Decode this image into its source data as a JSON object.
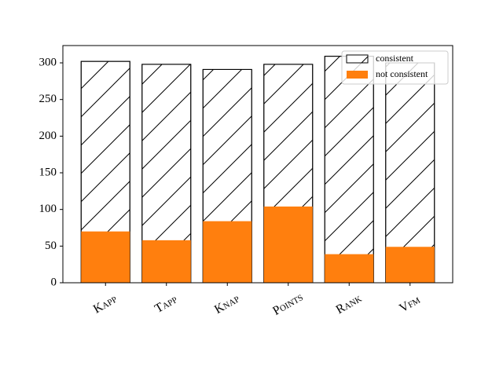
{
  "chart_data": {
    "type": "bar",
    "overlay": true,
    "categories": [
      "Kapp",
      "Tapp",
      "Knap",
      "Points",
      "Rank",
      "Vfm"
    ],
    "series": [
      {
        "name": "consistent",
        "color": "#ffffff",
        "edgecolor": "#000000",
        "hatch": "/",
        "values": [
          302,
          298,
          291,
          298,
          309,
          300
        ]
      },
      {
        "name": "not consistent",
        "color": "#ff7f0e",
        "values": [
          70,
          58,
          84,
          104,
          39,
          49
        ]
      }
    ],
    "ylim": [
      0,
      323.6
    ],
    "yticks": [
      0,
      50,
      100,
      150,
      200,
      250,
      300
    ],
    "legend": "upper right",
    "grid": false
  }
}
